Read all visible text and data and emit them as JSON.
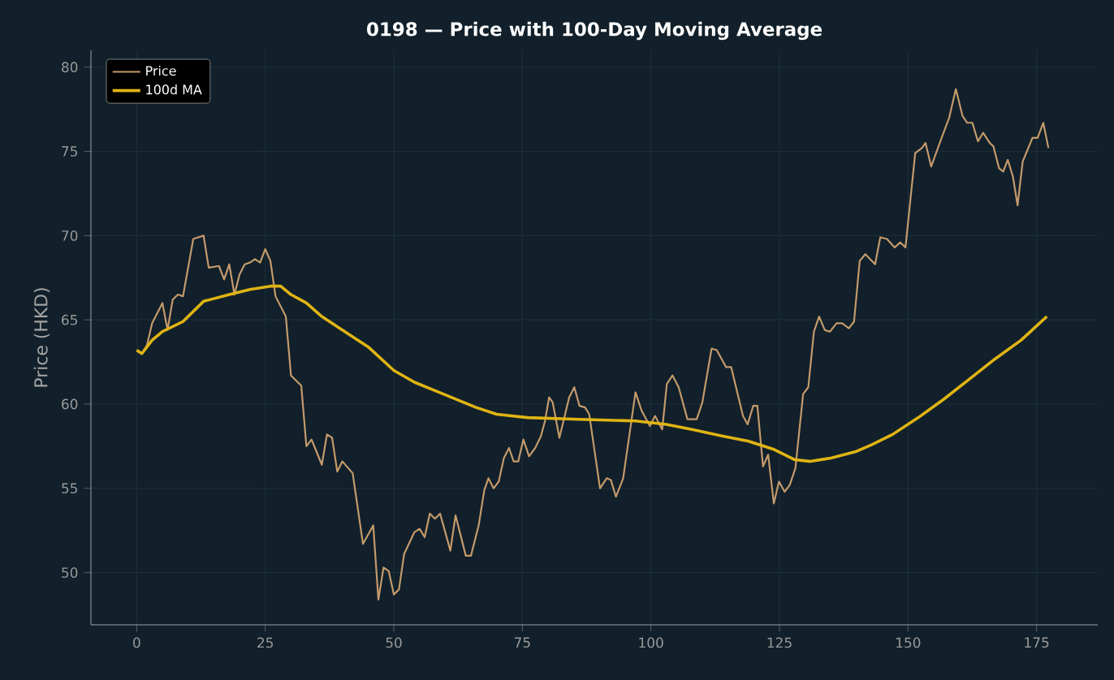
{
  "chart_data": {
    "type": "line",
    "title": "0198 — Price with 100-Day Moving Average",
    "ylabel": "Price (HKD)",
    "xlim": [
      -8.9,
      186.9
    ],
    "ylim": [
      46.9,
      81.0
    ],
    "xticks": [
      0,
      25,
      50,
      75,
      100,
      125,
      150,
      175
    ],
    "yticks": [
      50,
      55,
      60,
      65,
      70,
      75,
      80
    ],
    "grid": true,
    "legend": "top left",
    "line_style": "solid",
    "series": [
      {
        "name": "Price",
        "color": "#c49a6c",
        "x": [
          0,
          1,
          2,
          3,
          5,
          6,
          7,
          8,
          9,
          11,
          13,
          14,
          16,
          17,
          18,
          19,
          20,
          21,
          22,
          23,
          24,
          25,
          26,
          27,
          29,
          30,
          32,
          33,
          34,
          36,
          37,
          38,
          39,
          40,
          42,
          44,
          46,
          47,
          48,
          49,
          50,
          51,
          52,
          54,
          55,
          56,
          57,
          58,
          59,
          61,
          62,
          64,
          65,
          66.5,
          67.6,
          68.4,
          69.4,
          70.4,
          71.4,
          72.4,
          73.3,
          74.2,
          75.2,
          76.3,
          77.5,
          78.6,
          79.4,
          80.2,
          80.9,
          82.2,
          83,
          84.1,
          85.1,
          86.1,
          87.2,
          88,
          90.1,
          91.4,
          92.2,
          93.2,
          94.6,
          97,
          98.2,
          99.8,
          100.8,
          102.2,
          103.1,
          104.2,
          105.4,
          107.1,
          108.9,
          110,
          111.8,
          112.8,
          114.6,
          115.6,
          117.9,
          118.8,
          119.9,
          120.7,
          121.8,
          122.8,
          123.9,
          124.9,
          126,
          127,
          128.1,
          129.6,
          130.6,
          131.7,
          132.7,
          133.8,
          134.8,
          136.1,
          137.2,
          138.5,
          139.5,
          140.6,
          141.7,
          143.6,
          144.6,
          145.9,
          147.4,
          148.5,
          149.5,
          151.4,
          152.7,
          153.4,
          154.5,
          156.4,
          158,
          159.3,
          160.6,
          161.5,
          162.5,
          163.6,
          164.6,
          165.9,
          166.6,
          167.7,
          168.5,
          169.4,
          170.4,
          171.3,
          172.3,
          174.2,
          175.2,
          176.3,
          177.3
        ],
        "values": [
          63.2,
          63.0,
          63.5,
          64.8,
          66.0,
          64.4,
          66.2,
          66.5,
          66.4,
          69.8,
          70.0,
          68.1,
          68.2,
          67.4,
          68.3,
          66.5,
          67.7,
          68.3,
          68.4,
          68.6,
          68.4,
          69.2,
          68.5,
          66.4,
          65.2,
          61.7,
          61.1,
          57.5,
          57.9,
          56.4,
          58.2,
          58.0,
          56.0,
          56.6,
          55.9,
          51.7,
          52.8,
          48.4,
          50.3,
          50.1,
          48.7,
          49.0,
          51.1,
          52.4,
          52.6,
          52.1,
          53.5,
          53.2,
          53.5,
          51.3,
          53.4,
          51.0,
          51.0,
          52.8,
          54.9,
          55.6,
          55.0,
          55.4,
          56.8,
          57.4,
          56.6,
          56.6,
          57.9,
          56.9,
          57.4,
          58.1,
          59.0,
          60.4,
          60.1,
          58.0,
          59.0,
          60.4,
          61.0,
          59.9,
          59.8,
          59.4,
          55.0,
          55.6,
          55.5,
          54.5,
          55.6,
          60.7,
          59.6,
          58.7,
          59.3,
          58.5,
          61.2,
          61.7,
          61.0,
          59.1,
          59.1,
          60.1,
          63.3,
          63.2,
          62.2,
          62.2,
          59.3,
          58.8,
          59.9,
          59.9,
          56.3,
          57.0,
          54.1,
          55.4,
          54.8,
          55.2,
          56.2,
          60.6,
          61.0,
          64.3,
          65.2,
          64.4,
          64.3,
          64.8,
          64.8,
          64.5,
          64.9,
          68.5,
          68.9,
          68.3,
          69.9,
          69.8,
          69.3,
          69.6,
          69.3,
          74.9,
          75.2,
          75.5,
          74.1,
          75.7,
          77.0,
          78.7,
          77.1,
          76.7,
          76.7,
          75.6,
          76.1,
          75.5,
          75.3,
          74.0,
          73.8,
          74.5,
          73.5,
          71.8,
          74.4,
          75.8,
          75.8,
          76.7,
          75.2
        ]
      },
      {
        "name": "100d MA",
        "color": "#e0b414",
        "x": [
          0,
          1,
          3,
          5,
          9,
          13,
          18,
          22,
          26,
          28,
          30,
          33,
          36,
          40,
          45,
          50,
          54,
          58,
          62,
          66,
          70,
          76,
          86,
          97,
          103,
          108,
          114,
          119,
          124,
          128,
          131,
          135,
          140,
          143,
          147,
          152,
          157,
          162,
          167,
          172,
          177
        ],
        "values": [
          63.2,
          63.0,
          63.8,
          64.3,
          64.9,
          66.1,
          66.5,
          66.8,
          67.0,
          67.0,
          66.5,
          66.0,
          65.2,
          64.4,
          63.4,
          62.0,
          61.3,
          60.8,
          60.3,
          59.8,
          59.4,
          59.2,
          59.1,
          59.0,
          58.8,
          58.5,
          58.1,
          57.8,
          57.3,
          56.7,
          56.6,
          56.8,
          57.2,
          57.6,
          58.2,
          59.2,
          60.3,
          61.5,
          62.7,
          63.8,
          65.2
        ]
      }
    ]
  }
}
